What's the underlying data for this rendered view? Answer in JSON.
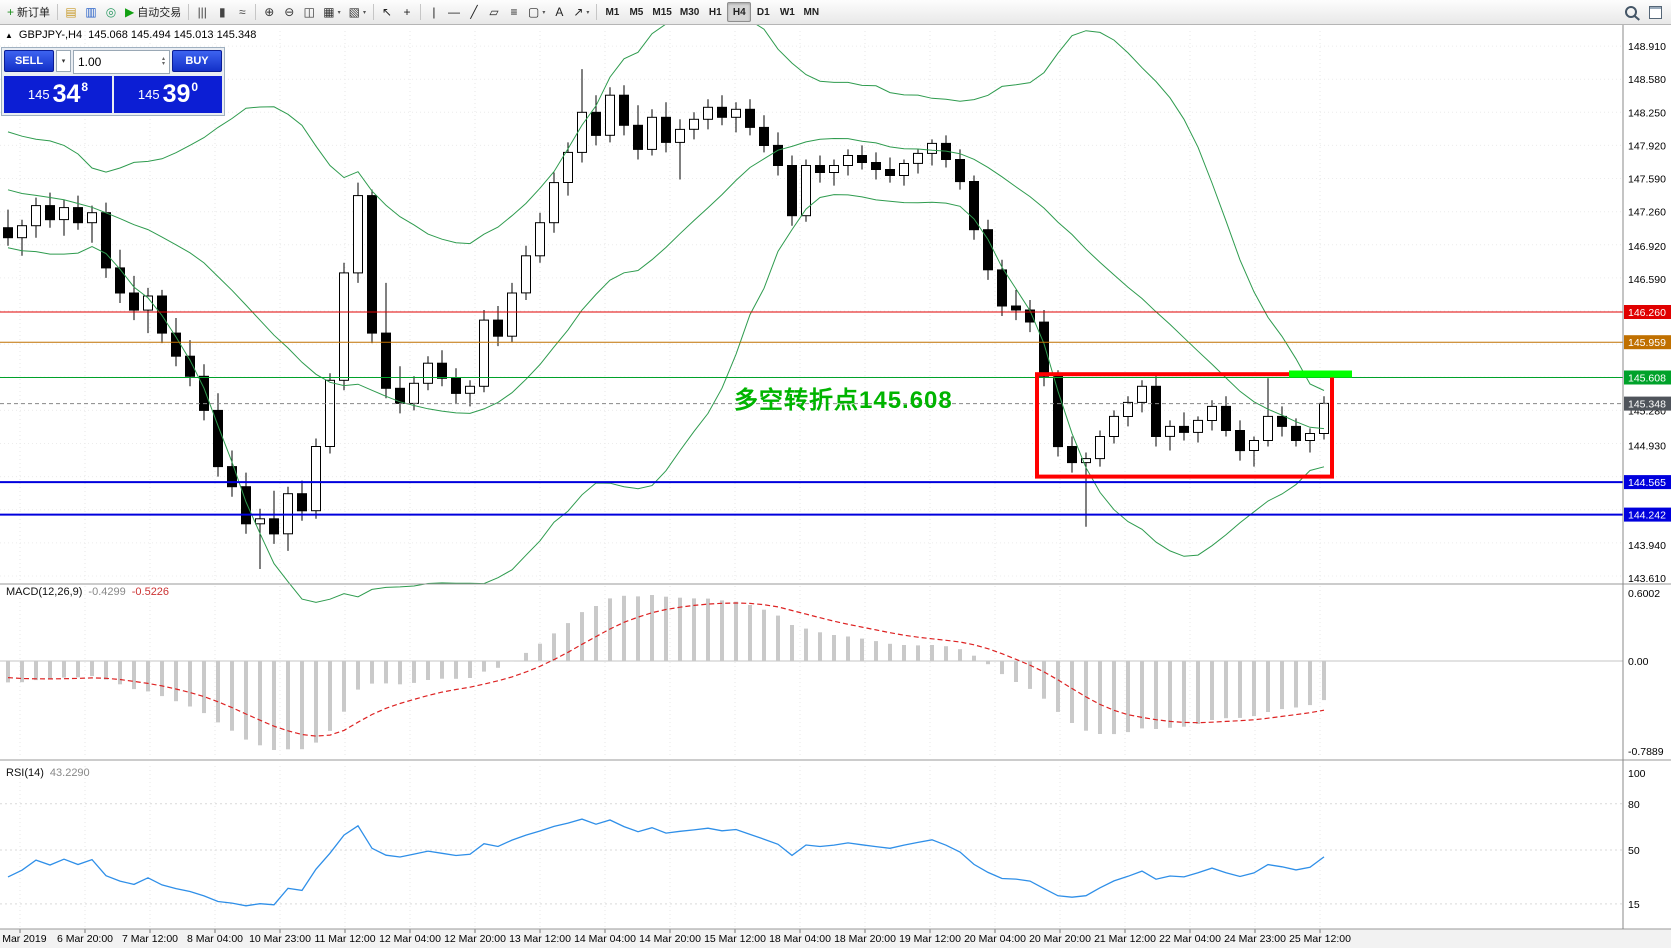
{
  "toolbar": {
    "items": [
      {
        "name": "new-order-button",
        "icon": "new-order-icon",
        "glyph": "+",
        "color": "#1f8f1f",
        "label": "新订单"
      },
      {
        "divider": true
      },
      {
        "name": "symbols-button",
        "icon": "symbols-icon",
        "glyph": "▤",
        "color": "#c89a2a"
      },
      {
        "name": "market-watch-button",
        "icon": "market-watch-icon",
        "glyph": "▥",
        "color": "#2a62c8"
      },
      {
        "name": "data-window-button",
        "icon": "data-window-icon",
        "glyph": "◎",
        "color": "#2a9a62"
      },
      {
        "name": "autotrading-button",
        "icon": "autotrading-icon",
        "glyph": "▶",
        "color": "#12a012",
        "label": "自动交易"
      },
      {
        "divider": true
      },
      {
        "name": "bar-chart-button",
        "icon": "bar-chart-icon",
        "glyph": "|||",
        "color": "#444"
      },
      {
        "name": "candle-chart-button",
        "icon": "candle-chart-icon",
        "glyph": "▮",
        "color": "#444"
      },
      {
        "name": "line-chart-button",
        "icon": "line-chart-icon",
        "glyph": "≈",
        "color": "#444"
      },
      {
        "divider": true
      },
      {
        "name": "zoom-in-button",
        "icon": "zoom-in-icon",
        "glyph": "⊕",
        "color": "#333"
      },
      {
        "name": "zoom-out-button",
        "icon": "zoom-out-icon",
        "glyph": "⊖",
        "color": "#333"
      },
      {
        "name": "tile-windows-button",
        "icon": "tile-windows-icon",
        "glyph": "◫",
        "color": "#333"
      },
      {
        "name": "new-chart-button",
        "icon": "new-chart-icon",
        "glyph": "▦",
        "color": "#333",
        "dropdown": true
      },
      {
        "name": "profiles-button",
        "icon": "profiles-icon",
        "glyph": "▧",
        "color": "#333",
        "dropdown": true
      },
      {
        "divider": true
      },
      {
        "name": "cursor-button",
        "icon": "cursor-icon",
        "glyph": "↖",
        "color": "#222"
      },
      {
        "name": "crosshair-button",
        "icon": "crosshair-icon",
        "glyph": "+",
        "color": "#222"
      },
      {
        "divider": true
      },
      {
        "name": "vertical-line-button",
        "icon": "vertical-line-icon",
        "glyph": "|",
        "color": "#222"
      },
      {
        "name": "horizontal-line-button",
        "icon": "horizontal-line-icon",
        "glyph": "—",
        "color": "#222"
      },
      {
        "name": "trendline-button",
        "icon": "trendline-icon",
        "glyph": "╱",
        "color": "#222"
      },
      {
        "name": "channel-button",
        "icon": "channel-icon",
        "glyph": "▱",
        "color": "#222"
      },
      {
        "name": "fibonacci-button",
        "icon": "fibonacci-icon",
        "glyph": "≡",
        "color": "#222"
      },
      {
        "name": "shapes-button",
        "icon": "shapes-icon",
        "glyph": "▢",
        "color": "#222",
        "dropdown": true
      },
      {
        "name": "text-button",
        "icon": "text-icon",
        "glyph": "A",
        "color": "#222"
      },
      {
        "name": "arrows-button",
        "icon": "arrows-icon",
        "glyph": "↗",
        "color": "#222",
        "dropdown": true
      },
      {
        "divider": true
      }
    ],
    "timeframes": [
      "M1",
      "M5",
      "M15",
      "M30",
      "H1",
      "H4",
      "D1",
      "W1",
      "MN"
    ],
    "active_timeframe": "H4"
  },
  "symbol_line": {
    "direction_icon": "▲",
    "symbol": "GBPJPY-,H4",
    "ohlc": "145.068 145.494 145.013 145.348"
  },
  "trade_panel": {
    "sell_label": "SELL",
    "buy_label": "BUY",
    "volume": "1.00",
    "sell_price": {
      "prefix": "145",
      "big": "34",
      "sup": "8"
    },
    "buy_price": {
      "prefix": "145",
      "big": "39",
      "sup": "0"
    }
  },
  "indicators": {
    "bollinger": {
      "name": "Bollinger Bands",
      "period": 20,
      "deviation": 2,
      "color": "#2e9b4e"
    },
    "macd": {
      "label": "MACD(12,26,9)",
      "value_main": "-0.4299",
      "value_signal": "-0.5226",
      "histogram_color": "#c9c9c9",
      "signal_color": "#dd2222"
    },
    "rsi": {
      "label": "RSI(14)",
      "value": "43.2290",
      "line_color": "#2f8fe8"
    }
  },
  "chart_data": {
    "type": "candlestick",
    "symbol": "GBPJPY-",
    "timeframe": "H4",
    "ohlc_current": {
      "open": 145.068,
      "high": 145.494,
      "low": 145.013,
      "close": 145.348
    },
    "price_axis_ticks": [
      "148.910",
      "148.580",
      "148.250",
      "147.920",
      "147.590",
      "147.260",
      "146.920",
      "146.590",
      "145.280",
      "144.930",
      "143.940",
      "143.610"
    ],
    "macd_axis_ticks": [
      "0.6002",
      "0.00",
      "-0.7889"
    ],
    "rsi_axis_ticks": [
      100,
      80,
      50,
      15
    ],
    "time_labels": [
      "5 Mar 2019",
      "6 Mar 20:00",
      "7 Mar 12:00",
      "8 Mar 04:00",
      "10 Mar 23:00",
      "11 Mar 12:00",
      "12 Mar 04:00",
      "12 Mar 20:00",
      "13 Mar 12:00",
      "14 Mar 04:00",
      "14 Mar 20:00",
      "15 Mar 12:00",
      "18 Mar 04:00",
      "18 Mar 20:00",
      "19 Mar 12:00",
      "20 Mar 04:00",
      "20 Mar 20:00",
      "21 Mar 12:00",
      "22 Mar 04:00",
      "24 Mar 23:00",
      "25 Mar 12:00"
    ],
    "levels": [
      {
        "price": 146.26,
        "label": "146.260",
        "color": "#e00000",
        "width": 1
      },
      {
        "price": 145.959,
        "label": "145.959",
        "color": "#c07000",
        "width": 1
      },
      {
        "price": 145.608,
        "label": "145.608",
        "color": "#00a22a",
        "width": 1
      },
      {
        "price": 144.565,
        "label": "144.565",
        "color": "#0000dd",
        "width": 2
      },
      {
        "price": 144.242,
        "label": "144.242",
        "color": "#0000dd",
        "width": 2
      }
    ],
    "current_price": {
      "value": 145.348,
      "label": "145.348",
      "label_bg": "#4f545b"
    },
    "annotation": {
      "text": "多空转折点145.608",
      "color": "#00b400"
    },
    "highlight_box": {
      "from_index": 74,
      "to_index": 94,
      "price_top": 145.64,
      "price_bottom": 144.62,
      "color": "#ff0000"
    },
    "breakout_bar": {
      "price": 145.608,
      "from_index": 92,
      "to_index": 96,
      "color": "#00ff00"
    },
    "warmup_closes": [
      147.9,
      147.85,
      147.7,
      147.6,
      147.75,
      147.9,
      148.0,
      147.8,
      147.6,
      147.5,
      147.4,
      147.55,
      147.35,
      147.2,
      147.3,
      147.45,
      147.25,
      147.1,
      147.2,
      147.05
    ],
    "candles": [
      [
        147.1,
        147.28,
        146.92,
        147.0
      ],
      [
        147.0,
        147.18,
        146.82,
        147.12
      ],
      [
        147.12,
        147.4,
        147.0,
        147.32
      ],
      [
        147.32,
        147.45,
        147.1,
        147.18
      ],
      [
        147.18,
        147.38,
        147.02,
        147.3
      ],
      [
        147.3,
        147.42,
        147.08,
        147.15
      ],
      [
        147.15,
        147.32,
        146.95,
        147.25
      ],
      [
        147.25,
        147.35,
        146.6,
        146.7
      ],
      [
        146.7,
        146.88,
        146.35,
        146.45
      ],
      [
        146.45,
        146.62,
        146.18,
        146.28
      ],
      [
        146.28,
        146.5,
        146.05,
        146.42
      ],
      [
        146.42,
        146.48,
        145.95,
        146.05
      ],
      [
        146.05,
        146.2,
        145.72,
        145.82
      ],
      [
        145.82,
        145.98,
        145.52,
        145.62
      ],
      [
        145.62,
        145.74,
        145.18,
        145.28
      ],
      [
        145.28,
        145.45,
        144.62,
        144.72
      ],
      [
        144.72,
        144.88,
        144.42,
        144.52
      ],
      [
        144.52,
        144.66,
        144.05,
        144.15
      ],
      [
        144.15,
        144.3,
        143.7,
        144.2
      ],
      [
        144.2,
        144.48,
        143.95,
        144.05
      ],
      [
        144.05,
        144.52,
        143.88,
        144.45
      ],
      [
        144.45,
        144.58,
        144.18,
        144.28
      ],
      [
        144.28,
        145.0,
        144.2,
        144.92
      ],
      [
        144.92,
        145.65,
        144.85,
        145.58
      ],
      [
        145.58,
        146.75,
        145.48,
        146.65
      ],
      [
        146.65,
        147.55,
        146.55,
        147.42
      ],
      [
        147.42,
        147.48,
        145.95,
        146.05
      ],
      [
        146.05,
        146.55,
        145.4,
        145.5
      ],
      [
        145.5,
        145.72,
        145.25,
        145.35
      ],
      [
        145.35,
        145.62,
        145.28,
        145.55
      ],
      [
        145.55,
        145.82,
        145.48,
        145.75
      ],
      [
        145.75,
        145.88,
        145.52,
        145.6
      ],
      [
        145.6,
        145.7,
        145.35,
        145.45
      ],
      [
        145.45,
        145.58,
        145.32,
        145.52
      ],
      [
        145.52,
        146.28,
        145.46,
        146.18
      ],
      [
        146.18,
        146.32,
        145.92,
        146.02
      ],
      [
        146.02,
        146.55,
        145.96,
        146.45
      ],
      [
        146.45,
        146.92,
        146.38,
        146.82
      ],
      [
        146.82,
        147.25,
        146.75,
        147.15
      ],
      [
        147.15,
        147.65,
        147.05,
        147.55
      ],
      [
        147.55,
        147.95,
        147.42,
        147.85
      ],
      [
        147.85,
        148.68,
        147.75,
        148.25
      ],
      [
        148.25,
        148.42,
        147.92,
        148.02
      ],
      [
        148.02,
        148.5,
        147.95,
        148.42
      ],
      [
        148.42,
        148.52,
        148.02,
        148.12
      ],
      [
        148.12,
        148.32,
        147.78,
        147.88
      ],
      [
        147.88,
        148.28,
        147.82,
        148.2
      ],
      [
        148.2,
        148.35,
        147.85,
        147.95
      ],
      [
        147.95,
        148.18,
        147.58,
        148.08
      ],
      [
        148.08,
        148.25,
        147.98,
        148.18
      ],
      [
        148.18,
        148.38,
        148.08,
        148.3
      ],
      [
        148.3,
        148.42,
        148.12,
        148.2
      ],
      [
        148.2,
        148.35,
        148.05,
        148.28
      ],
      [
        148.28,
        148.38,
        148.02,
        148.1
      ],
      [
        148.1,
        148.22,
        147.85,
        147.92
      ],
      [
        147.92,
        148.05,
        147.62,
        147.72
      ],
      [
        147.72,
        147.82,
        147.12,
        147.22
      ],
      [
        147.22,
        147.78,
        147.16,
        147.72
      ],
      [
        147.72,
        147.82,
        147.55,
        147.65
      ],
      [
        147.65,
        147.78,
        147.52,
        147.72
      ],
      [
        147.72,
        147.88,
        147.62,
        147.82
      ],
      [
        147.82,
        147.92,
        147.68,
        147.75
      ],
      [
        147.75,
        147.85,
        147.58,
        147.68
      ],
      [
        147.68,
        147.8,
        147.55,
        147.62
      ],
      [
        147.62,
        147.78,
        147.52,
        147.74
      ],
      [
        147.74,
        147.88,
        147.64,
        147.84
      ],
      [
        147.84,
        147.98,
        147.72,
        147.94
      ],
      [
        147.94,
        148.02,
        147.7,
        147.78
      ],
      [
        147.78,
        147.88,
        147.48,
        147.56
      ],
      [
        147.56,
        147.62,
        146.98,
        147.08
      ],
      [
        147.08,
        147.18,
        146.58,
        146.68
      ],
      [
        146.68,
        146.78,
        146.22,
        146.32
      ],
      [
        146.32,
        146.48,
        146.18,
        146.28
      ],
      [
        146.28,
        146.38,
        146.06,
        146.16
      ],
      [
        146.16,
        146.28,
        145.52,
        145.62
      ],
      [
        145.62,
        145.68,
        144.82,
        144.92
      ],
      [
        144.92,
        145.02,
        144.66,
        144.76
      ],
      [
        144.76,
        144.86,
        144.12,
        144.8
      ],
      [
        144.8,
        145.08,
        144.72,
        145.02
      ],
      [
        145.02,
        145.28,
        144.95,
        145.22
      ],
      [
        145.22,
        145.42,
        145.12,
        145.36
      ],
      [
        145.36,
        145.58,
        145.26,
        145.52
      ],
      [
        145.52,
        145.62,
        144.92,
        145.02
      ],
      [
        145.02,
        145.18,
        144.88,
        145.12
      ],
      [
        145.12,
        145.26,
        144.98,
        145.06
      ],
      [
        145.06,
        145.22,
        144.96,
        145.18
      ],
      [
        145.18,
        145.38,
        145.08,
        145.32
      ],
      [
        145.32,
        145.42,
        145.02,
        145.08
      ],
      [
        145.08,
        145.18,
        144.78,
        144.88
      ],
      [
        144.88,
        145.02,
        144.72,
        144.98
      ],
      [
        144.98,
        145.6,
        144.92,
        145.22
      ],
      [
        145.22,
        145.32,
        145.02,
        145.12
      ],
      [
        145.12,
        145.2,
        144.92,
        144.98
      ],
      [
        144.98,
        145.1,
        144.86,
        145.05
      ],
      [
        145.05,
        145.42,
        144.99,
        145.35
      ]
    ]
  }
}
